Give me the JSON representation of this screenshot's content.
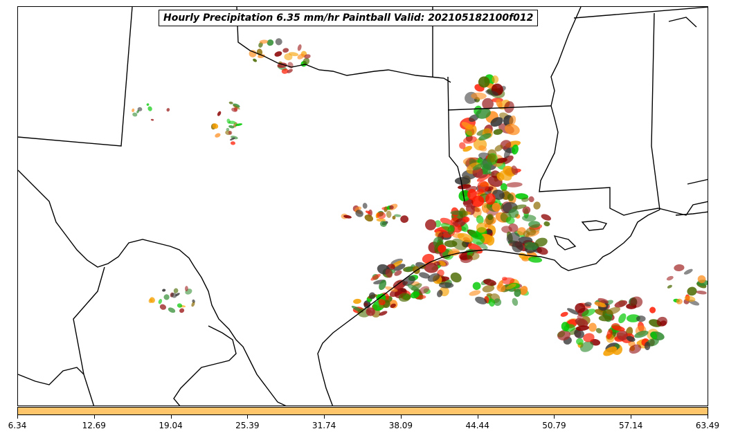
{
  "title": "Hourly Precipitation 6.35 mm/hr Paintball Valid: 202105182100f012",
  "colorbar": {
    "color": "#fec56a",
    "ticks": [
      "6.34",
      "12.69",
      "19.04",
      "25.39",
      "31.74",
      "38.09",
      "44.44",
      "50.79",
      "57.14",
      "63.49"
    ]
  },
  "member_colors": [
    "#00c800",
    "#ff1a00",
    "#ff8c1a",
    "#f5a000",
    "#8b0000",
    "#4a6a00",
    "#8b6a00",
    "#333333",
    "#2e8b2e",
    "#a52a2a"
  ]
}
